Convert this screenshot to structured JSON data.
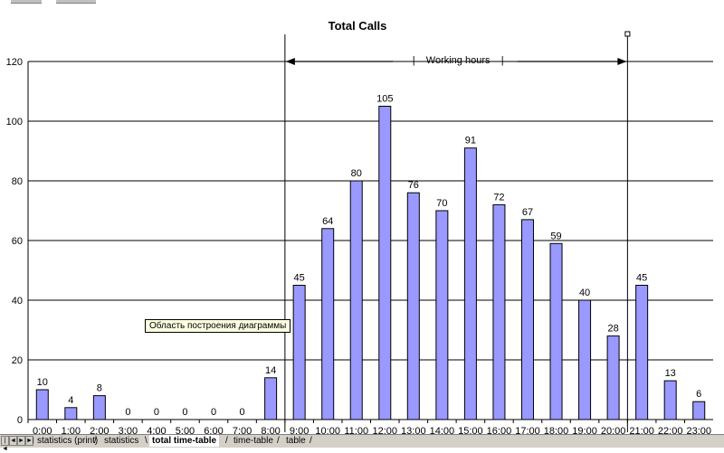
{
  "chart_data": {
    "type": "bar",
    "title": "Total Calls",
    "categories": [
      "0:00",
      "1:00",
      "2:00",
      "3:00",
      "4:00",
      "5:00",
      "6:00",
      "7:00",
      "8:00",
      "9:00",
      "10:00",
      "11:00",
      "12:00",
      "13:00",
      "14:00",
      "15:00",
      "16:00",
      "17:00",
      "18:00",
      "19:00",
      "20:00",
      "21:00",
      "22:00",
      "23:00"
    ],
    "values": [
      10,
      4,
      8,
      0,
      0,
      0,
      0,
      0,
      14,
      45,
      64,
      80,
      105,
      76,
      70,
      91,
      72,
      67,
      59,
      40,
      28,
      45,
      13,
      6
    ],
    "ylim": [
      0,
      120
    ],
    "yticks": [
      0,
      20,
      40,
      60,
      80,
      100,
      120
    ],
    "xlabel": "",
    "ylabel": "",
    "grid": true,
    "bar_color": "#9999ff",
    "annotation": {
      "text": "Working hours",
      "range_start": "9:00",
      "range_end": "21:00"
    }
  },
  "tooltip": "Область построения диаграммы",
  "tabs": {
    "nav": [
      "|◄",
      "◄",
      "►",
      "►|"
    ],
    "sheets": [
      {
        "label": "statistics (print)",
        "active": false
      },
      {
        "label": "statistics",
        "active": false
      },
      {
        "label": "total time-table",
        "active": true
      },
      {
        "label": "time-table",
        "active": false
      },
      {
        "label": "table",
        "active": false
      }
    ]
  }
}
